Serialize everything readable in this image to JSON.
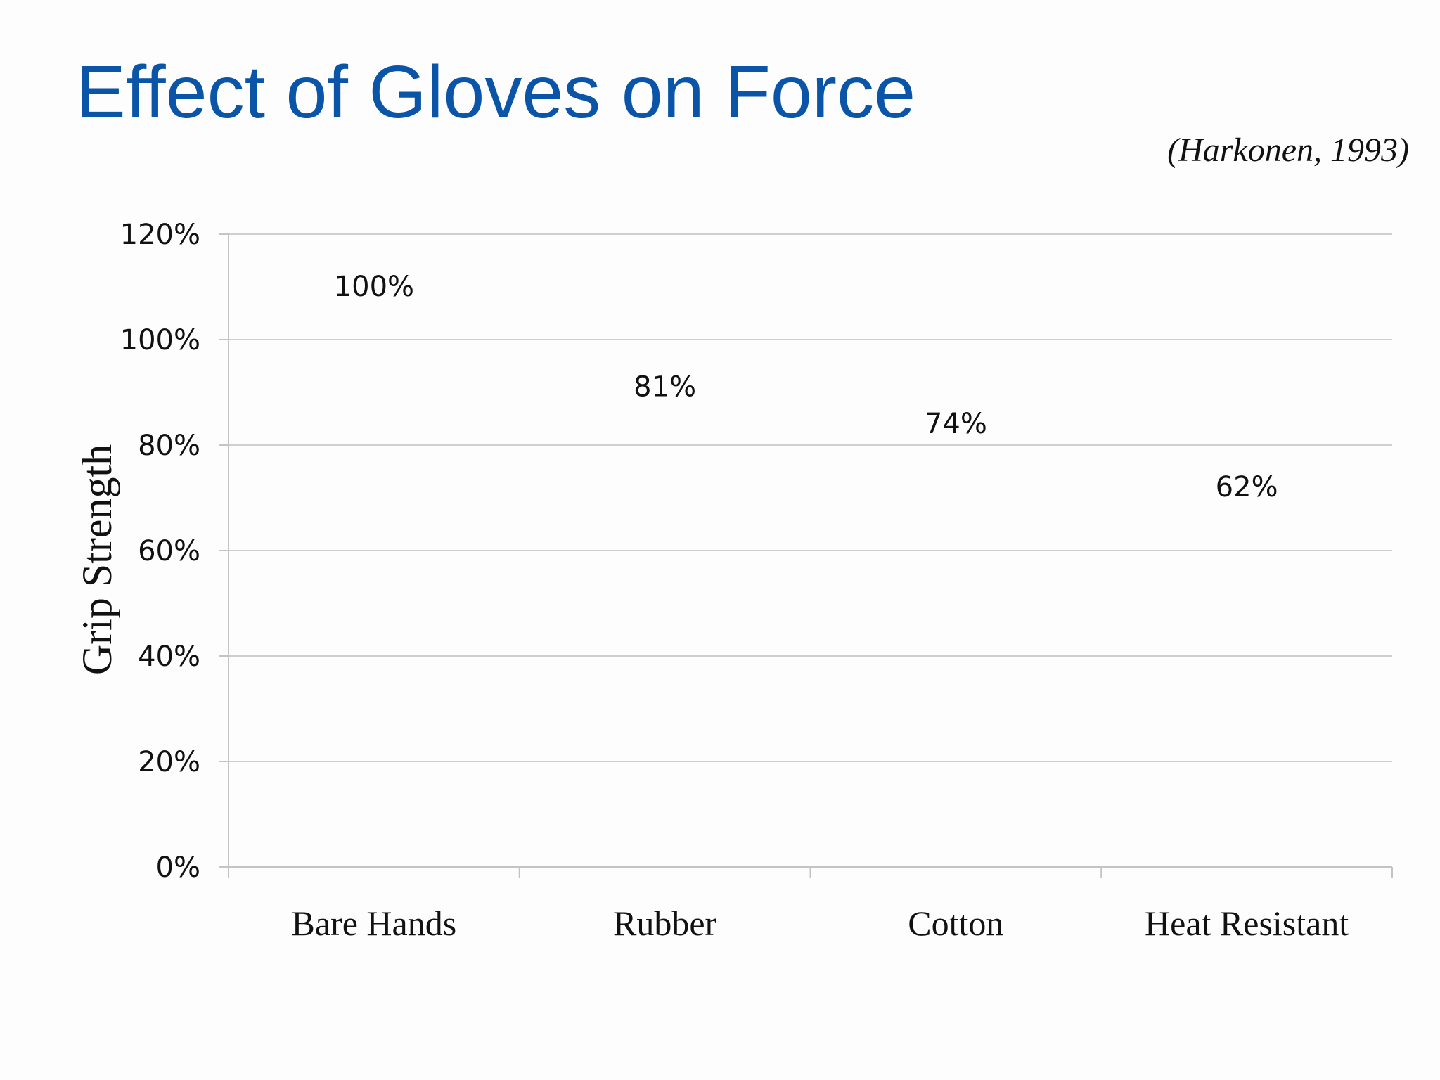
{
  "slide": {
    "title": "Effect of Gloves on Force",
    "citation": "(Harkonen, 1993)"
  },
  "colors": {
    "title": "#0b55a8",
    "text": "#111111",
    "gridline": "#cfcfcf"
  },
  "chart_data": {
    "type": "bar",
    "title": "",
    "xlabel": "",
    "ylabel": "Grip Strength",
    "categories": [
      "Bare Hands",
      "Rubber",
      "Cotton",
      "Heat Resistant"
    ],
    "values": [
      1.0,
      0.81,
      0.74,
      0.62
    ],
    "data_labels": [
      "100%",
      "81%",
      "74%",
      "62%"
    ],
    "ylim": [
      0,
      1.2
    ],
    "y_ticks": [
      0,
      0.2,
      0.4,
      0.6,
      0.8,
      1.0,
      1.2
    ],
    "y_tick_labels": [
      "0%",
      "20%",
      "40%",
      "60%",
      "80%",
      "100%",
      "120%"
    ],
    "grid": true,
    "legend": "none"
  }
}
